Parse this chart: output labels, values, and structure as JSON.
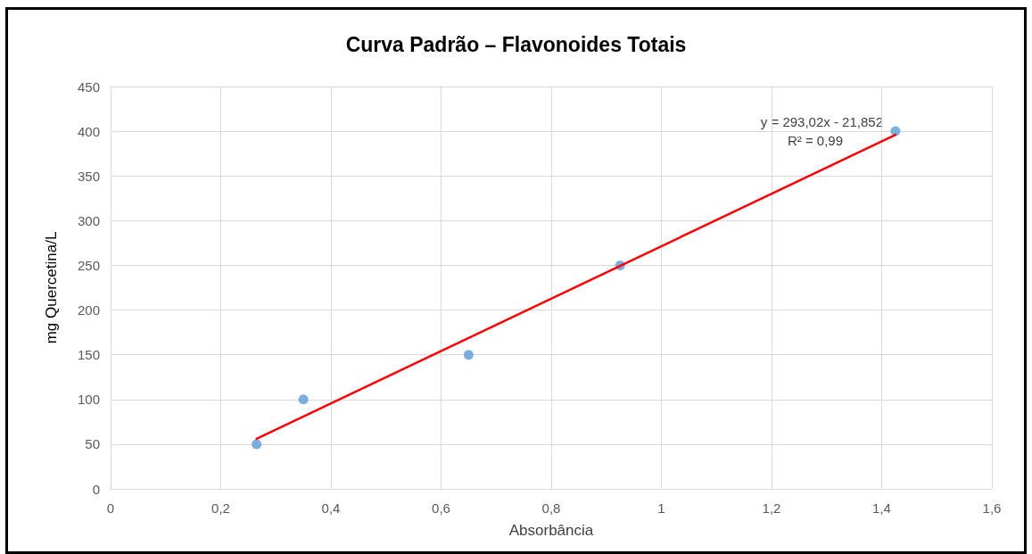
{
  "chart_data": {
    "type": "scatter",
    "title": "Curva Padrão – Flavonoides Totais",
    "xlabel": "Absorbância",
    "ylabel": "mg Quercetina/L",
    "series": [
      {
        "color": "#5b9bd5",
        "x": [
          0.265,
          0.35,
          0.65,
          0.925,
          1.425
        ],
        "values": [
          50,
          100,
          150,
          250,
          400
        ],
        "marker": "circle"
      },
      {
        "type": "line",
        "color": "#ff0000",
        "x": [
          0.265,
          1.425
        ],
        "values": [
          56,
          396
        ],
        "marker": "none",
        "line_style": "solid"
      }
    ],
    "annotations": [
      "y = 293,02x - 21,852",
      "R² = 0,99"
    ],
    "xlim": [
      0,
      1.6
    ],
    "xticks": [
      0,
      {
        "value": 0.2,
        "label": "0,2"
      },
      {
        "value": 0.4,
        "label": "0,4"
      },
      {
        "value": 0.6,
        "label": "0,6"
      },
      {
        "value": 0.8,
        "label": "0,8"
      },
      1,
      {
        "value": 1.2,
        "label": "1,2"
      },
      {
        "value": 1.4,
        "label": "1,4"
      },
      {
        "value": 1.6,
        "label": "1,6"
      }
    ],
    "ylim": [
      0,
      450
    ],
    "yticks": [
      0,
      50,
      100,
      150,
      200,
      250,
      300,
      350,
      400,
      450
    ],
    "grid": true
  }
}
